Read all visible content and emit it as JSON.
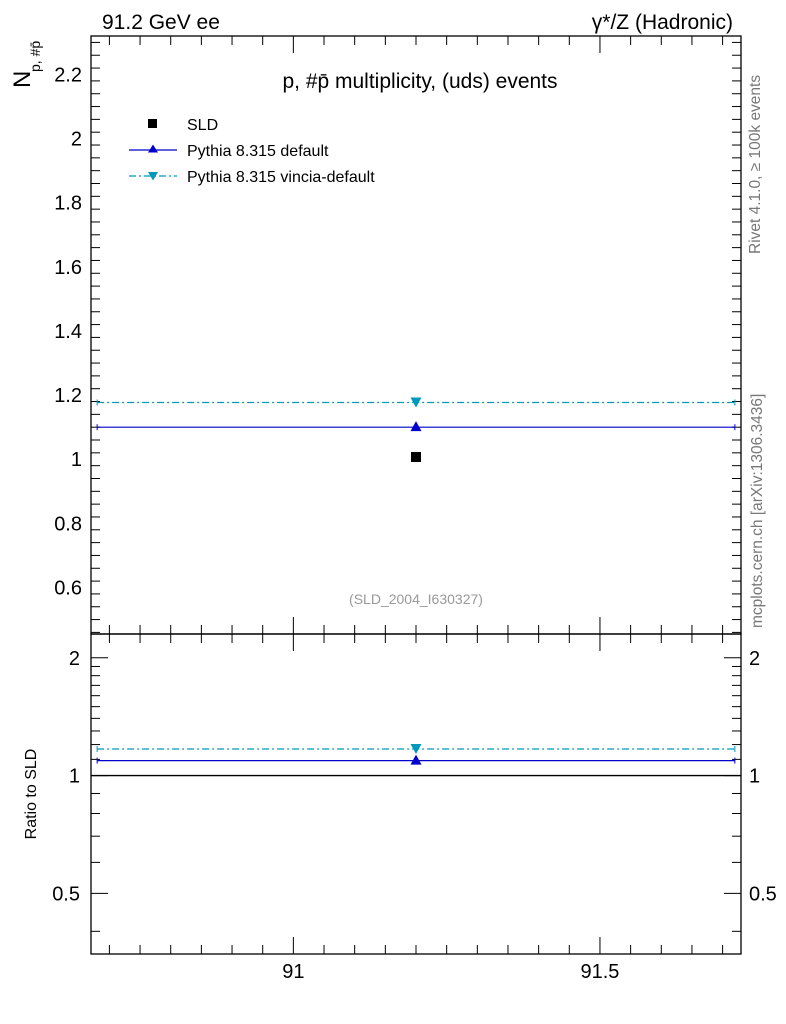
{
  "header": {
    "left": "91.2 GeV ee",
    "right": "γ*/Z (Hadronic)"
  },
  "side": {
    "rivet": "Rivet 4.1.0, ≥ 100k events",
    "mcplots": "mcplots.cern.ch [arXiv:1306.3436]"
  },
  "colors": {
    "data": "#000000",
    "default": "#0000cc",
    "vincia": "#0099bb",
    "ref_line": "#000000",
    "watermark": "#999999"
  },
  "chart_data": [
    {
      "type": "scatter",
      "title": "p, #p̄ multiplicity, (uds) events",
      "ylabel_main": "N",
      "ylabel_sub": "p, #p̄",
      "watermark": "(SLD_2004_I630327)",
      "xlim": [
        90.67,
        91.73
      ],
      "ylim": [
        0.455,
        2.32
      ],
      "yticks": [
        0.6,
        0.8,
        1,
        1.2,
        1.4,
        1.6,
        1.8,
        2,
        2.2
      ],
      "ytick_labels": [
        "0.6",
        "0.8",
        "1",
        "1.2",
        "1.4",
        "1.6",
        "1.8",
        "2",
        "2.2"
      ],
      "legend_position": "top-left",
      "series": [
        {
          "name": "SLD",
          "marker": "square",
          "x": [
            91.2
          ],
          "y": [
            1.007
          ]
        },
        {
          "name": "Pythia 8.315 default",
          "marker": "triangle-up",
          "line": "solid",
          "x": [
            91.2
          ],
          "y": [
            1.1
          ],
          "xrange": [
            90.68,
            91.72
          ]
        },
        {
          "name": "Pythia 8.315 vincia-default",
          "marker": "triangle-down",
          "line": "dashdot",
          "x": [
            91.2
          ],
          "y": [
            1.177
          ],
          "xrange": [
            90.68,
            91.72
          ]
        }
      ]
    },
    {
      "type": "scatter",
      "ylabel": "Ratio to SLD",
      "xlim": [
        90.67,
        91.73
      ],
      "ylim": [
        0.35,
        2.3
      ],
      "xticks": [
        91,
        91.5
      ],
      "xtick_labels": [
        "91",
        "91.5"
      ],
      "yticks": [
        0.5,
        1,
        2
      ],
      "ytick_labels": [
        "0.5",
        "1",
        "2"
      ],
      "reference": 1,
      "series": [
        {
          "name": "Pythia 8.315 default",
          "x": [
            91.2
          ],
          "y": [
            1.092
          ]
        },
        {
          "name": "Pythia 8.315 vincia-default",
          "x": [
            91.2
          ],
          "y": [
            1.169
          ]
        }
      ]
    }
  ]
}
